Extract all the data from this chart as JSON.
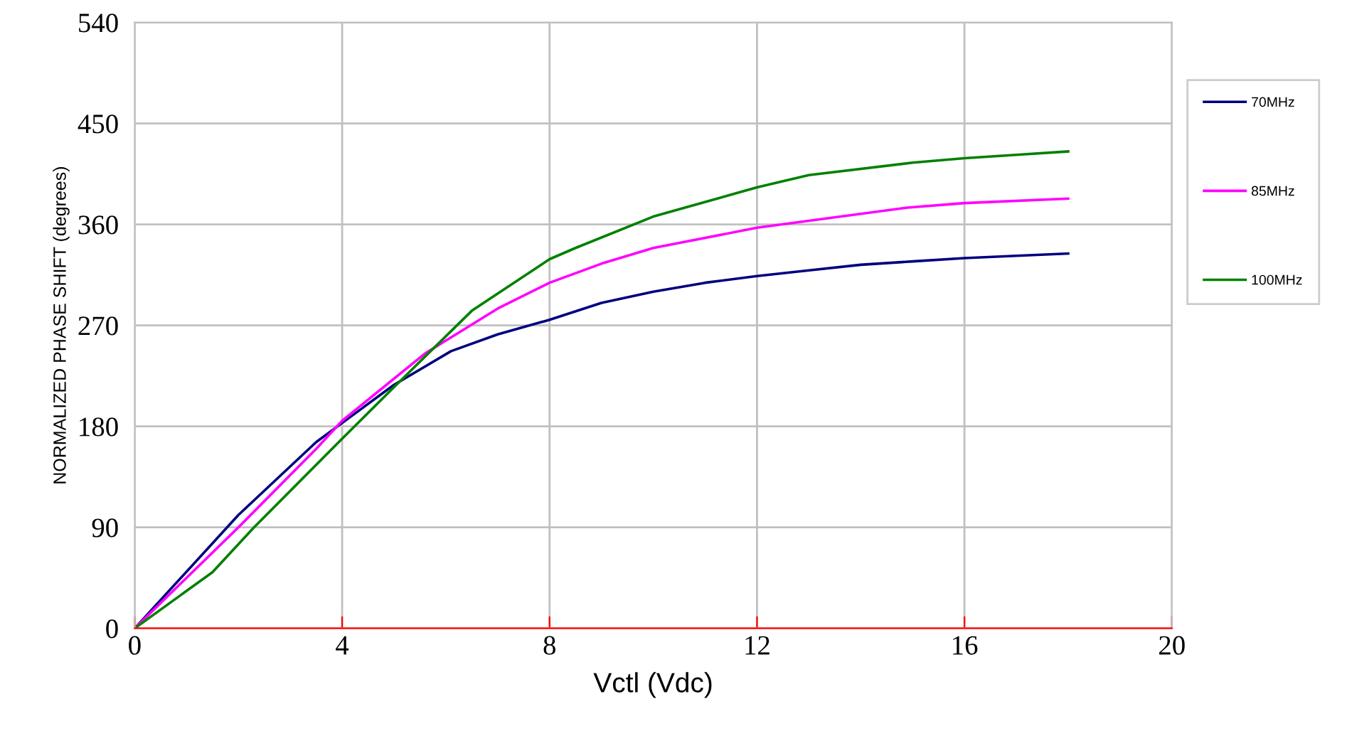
{
  "chart_data": {
    "type": "line",
    "xlabel": "Vctl (Vdc)",
    "ylabel": "NORMALIZED PHASE SHIFT (degrees)",
    "xlim": [
      0,
      20
    ],
    "xticks": [
      0,
      4,
      8,
      12,
      16,
      20
    ],
    "ylim": [
      0,
      540
    ],
    "yticks": [
      0,
      90,
      180,
      270,
      360,
      450,
      540
    ],
    "grid": true,
    "legend": "right",
    "marker": "none",
    "line_style": "solid",
    "series": [
      {
        "name": "70MHz",
        "color": "#000080",
        "x": [
          0,
          2,
          3.5,
          4,
          5,
          6.1,
          7,
          8,
          9,
          10,
          11,
          12,
          13,
          14,
          15,
          16,
          17,
          18
        ],
        "values": [
          0,
          101,
          166,
          183,
          217,
          247,
          262,
          275,
          290,
          300,
          308,
          314,
          319,
          324,
          327,
          330,
          332,
          334
        ]
      },
      {
        "name": "85MHz",
        "color": "#ff00ff",
        "x": [
          0,
          2,
          3.5,
          4,
          5.6,
          7,
          8,
          9,
          10,
          12,
          14.9,
          16,
          18
        ],
        "values": [
          0,
          90,
          160,
          185,
          245,
          285,
          308,
          325,
          339,
          357,
          375,
          379,
          383
        ]
      },
      {
        "name": "100MHz",
        "color": "#008000",
        "x": [
          0,
          1.5,
          2.3,
          4,
          4.5,
          5,
          6.5,
          8,
          8.5,
          10,
          12,
          13,
          15,
          16,
          17,
          18
        ],
        "values": [
          0,
          50,
          90,
          169,
          192,
          215,
          283,
          329,
          339,
          367,
          393,
          404,
          415,
          419,
          422,
          425
        ]
      }
    ]
  }
}
